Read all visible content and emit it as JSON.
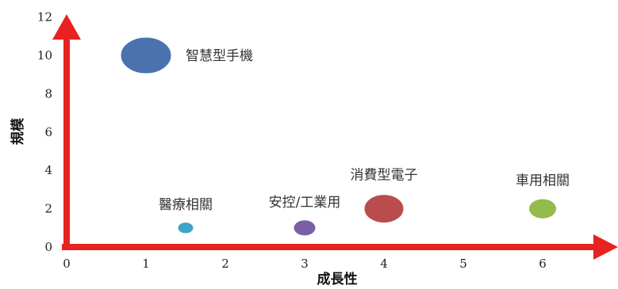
{
  "chart_data": {
    "type": "scatter",
    "xlabel": "成長性",
    "ylabel": "規模",
    "xlim": [
      0,
      6.9
    ],
    "ylim": [
      0,
      12
    ],
    "x_ticks": [
      "0",
      "1",
      "2",
      "3",
      "4",
      "5",
      "6"
    ],
    "y_ticks": [
      "0",
      "2",
      "4",
      "6",
      "8",
      "10",
      "12"
    ],
    "grid": false,
    "legend": "none",
    "axis_color": "#e8221f",
    "points": [
      {
        "label": "智慧型手機",
        "x": 1.0,
        "y": 10,
        "size": 3.2,
        "color": "#4a73ae"
      },
      {
        "label": "醫療相關",
        "x": 1.5,
        "y": 1,
        "size": 1.0,
        "color": "#3fa4c4"
      },
      {
        "label": "安控/工業用",
        "x": 3.0,
        "y": 1,
        "size": 1.4,
        "color": "#7b5ea7"
      },
      {
        "label": "消費型電子",
        "x": 4.0,
        "y": 2,
        "size": 2.5,
        "color": "#b94d4d"
      },
      {
        "label": "車用相關",
        "x": 6.0,
        "y": 2,
        "size": 1.75,
        "color": "#93bb4e"
      }
    ]
  }
}
